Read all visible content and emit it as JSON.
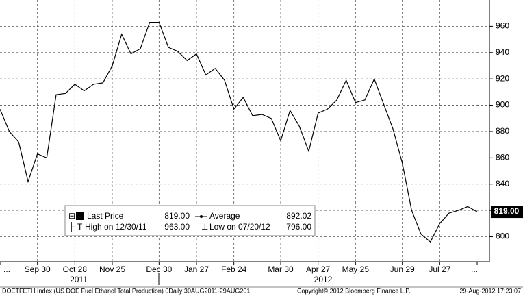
{
  "chart_data": {
    "type": "line",
    "categories": [
      "...",
      null,
      null,
      null,
      "Sep 30",
      null,
      null,
      null,
      "Oct 28",
      null,
      null,
      null,
      "Nov 25",
      null,
      null,
      null,
      null,
      "Dec 30",
      null,
      null,
      null,
      "Jan 27",
      null,
      null,
      null,
      "Feb 24",
      null,
      null,
      null,
      null,
      "Mar 30",
      null,
      null,
      null,
      "Apr 27",
      null,
      null,
      null,
      "May 25",
      null,
      null,
      null,
      null,
      "Jun 29",
      null,
      null,
      null,
      "Jul 27",
      null,
      null,
      null,
      "..."
    ],
    "series": [
      {
        "name": "Last Price",
        "color": "#000000",
        "values": [
          897,
          880,
          872,
          842,
          863,
          860,
          908,
          909,
          916,
          911,
          916,
          917,
          930,
          954,
          939,
          943,
          963,
          963,
          944,
          941,
          934,
          939,
          923,
          928,
          919,
          897,
          906,
          892,
          893,
          890,
          873,
          896,
          884,
          865,
          894,
          897,
          904,
          919,
          902,
          904,
          920,
          901,
          882,
          856,
          820,
          802,
          796,
          810,
          818,
          820,
          823,
          819
        ]
      }
    ],
    "ylim": [
      781,
      980
    ],
    "yticks": [
      800,
      820,
      840,
      860,
      880,
      900,
      920,
      940,
      960
    ],
    "grid": true
  },
  "years": [
    "2011",
    "2012"
  ],
  "legend": [
    {
      "name": "Last Price",
      "value": {
        "value": 819,
        "label": "819.00"
      }
    },
    {
      "name": "High on 12/30/11",
      "value": {
        "value": 963,
        "label": "963.00"
      }
    },
    {
      "name": "Average",
      "value": {
        "value": 892.02,
        "label": "892.02"
      }
    },
    {
      "name": "Low on 07/20/12",
      "value": {
        "value": 796,
        "label": "796.00"
      }
    }
  ],
  "footer": {
    "source": "DOETFETH Index (US DOE Fuel Ethanol Total Production) 0Daily 30AUG2011-29AUG201",
    "copyright": "Copyright© 2012 Bloomberg Finance L.P.",
    "timestamp": "29-Aug-2012 17:23:07"
  }
}
